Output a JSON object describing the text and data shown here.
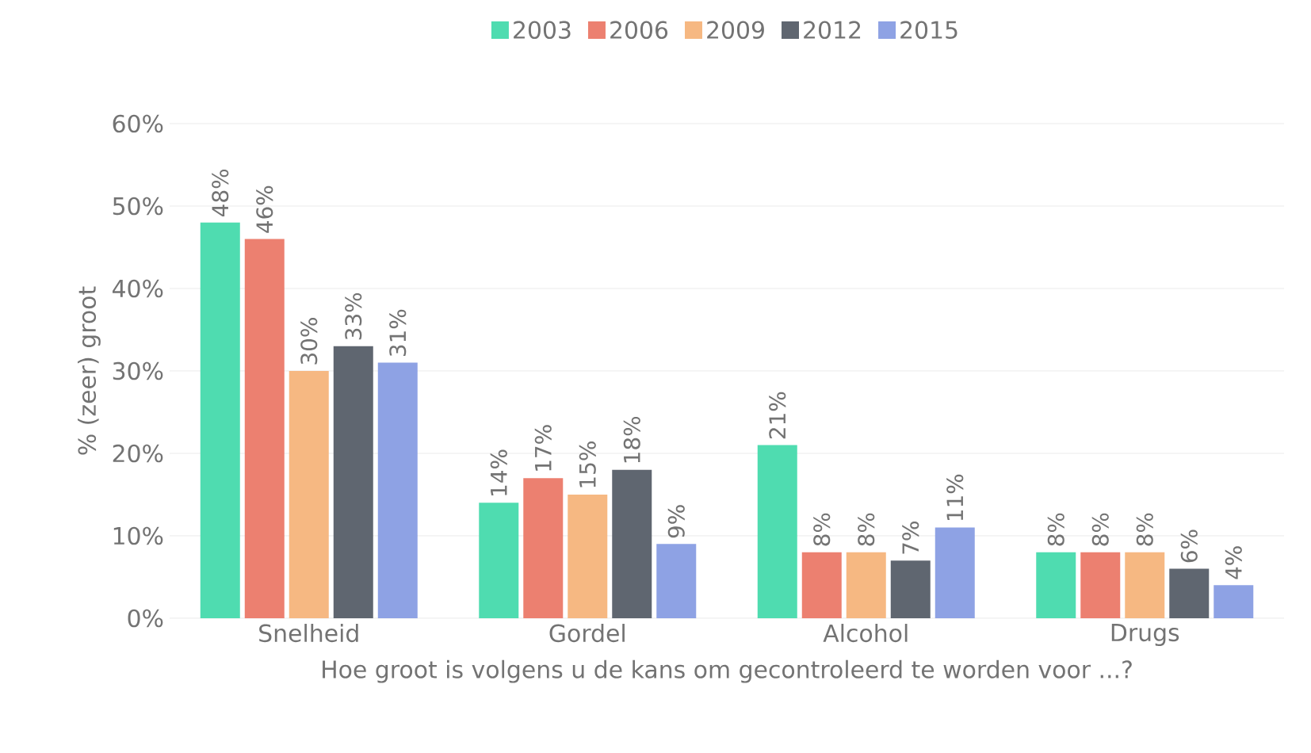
{
  "chart_data": {
    "type": "bar",
    "xlabel": "Hoe groot is volgens u de kans om gecontroleerd te worden voor ...?",
    "ylabel": "% (zeer) groot",
    "categories": [
      "Snelheid",
      "Gordel",
      "Alcohol",
      "Drugs"
    ],
    "series": [
      {
        "name": "2003",
        "color": "#4fdcb0",
        "values": [
          48,
          14,
          21,
          8
        ],
        "value_labels": [
          "48%",
          "14%",
          "21%",
          "8%"
        ]
      },
      {
        "name": "2006",
        "color": "#ec8070",
        "values": [
          46,
          17,
          8,
          8
        ],
        "value_labels": [
          "46%",
          "17%",
          "8%",
          "8%"
        ]
      },
      {
        "name": "2009",
        "color": "#f6b882",
        "values": [
          30,
          15,
          8,
          8
        ],
        "value_labels": [
          "30%",
          "15%",
          "8%",
          "8%"
        ]
      },
      {
        "name": "2012",
        "color": "#5f6670",
        "values": [
          33,
          18,
          7,
          6
        ],
        "value_labels": [
          "33%",
          "18%",
          "7%",
          "6%"
        ]
      },
      {
        "name": "2015",
        "color": "#8ea2e4",
        "values": [
          31,
          9,
          11,
          4
        ],
        "value_labels": [
          "31%",
          "9%",
          "11%",
          "4%"
        ]
      }
    ],
    "ylim": [
      0,
      60
    ],
    "yticks": [
      {
        "value": 0,
        "label": "0%"
      },
      {
        "value": 10,
        "label": "10%"
      },
      {
        "value": 20,
        "label": "20%"
      },
      {
        "value": 30,
        "label": "30%"
      },
      {
        "value": 40,
        "label": "40%"
      },
      {
        "value": 50,
        "label": "50%"
      },
      {
        "value": 60,
        "label": "60%"
      }
    ],
    "grid": "y",
    "legend": "top"
  }
}
